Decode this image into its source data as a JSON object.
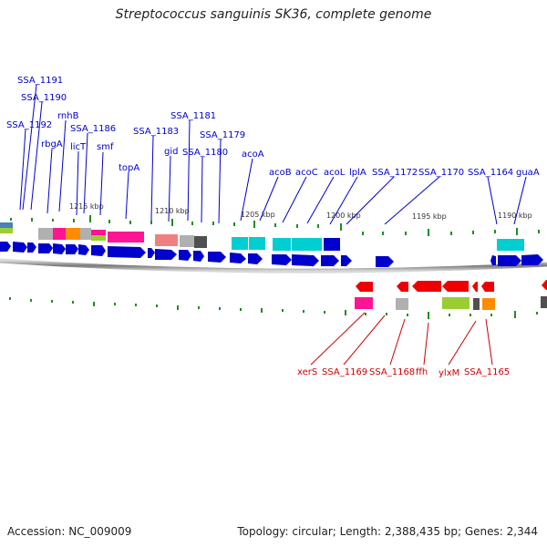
{
  "title": "Streptococcus sanguinis SK36, complete genome",
  "footer": {
    "accession": "Accession: NC_009009",
    "summary": "Topology: circular; Length: 2,388,435 bp; Genes: 2,344"
  },
  "scale_labels": [
    "1215 kbp",
    "1210 kbp",
    "1205 kbp",
    "1200 kbp",
    "1195 kbp",
    "1190 kbp"
  ],
  "top_labels": [
    "SSA_1191",
    "SSA_1190",
    "SSA_1192",
    "rnhB",
    "SSA_1186",
    "rbgA",
    "licT",
    "smf",
    "topA",
    "SSA_1183",
    "SSA_1181",
    "gid",
    "SSA_1180",
    "SSA_1179",
    "acoA",
    "acoB",
    "acoC",
    "acoL",
    "lplA",
    "SSA_1172",
    "SSA_1170",
    "SSA_1164",
    "guaA"
  ],
  "bottom_labels": [
    "xerS",
    "SSA_1169",
    "SSA_1168",
    "ffh",
    "ylxM",
    "SSA_1165"
  ],
  "colors": {
    "forward_gene": "#0000cc",
    "reverse_gene": "#ee0000",
    "top_label": "#0000cc",
    "bottom_label": "#cc0000",
    "tick": "#228b22",
    "backbone": "#808080"
  }
}
